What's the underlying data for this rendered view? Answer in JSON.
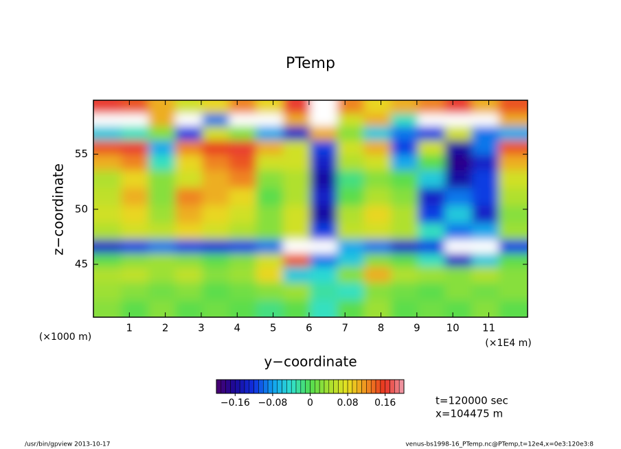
{
  "chart_data": {
    "type": "heatmap",
    "title": "PTemp",
    "xlabel": "y−coordinate",
    "ylabel": "z−coordinate",
    "xunit_left": "(×1000 m)",
    "xunit_right": "(×1E4 m)",
    "xlim": [
      0,
      12.08
    ],
    "xticks": [
      1,
      2,
      3,
      4,
      5,
      6,
      7,
      8,
      9,
      10,
      11
    ],
    "ylim": [
      40.2,
      59.9
    ],
    "yticks": [
      45,
      50,
      55
    ],
    "x": [
      0.4,
      1.15,
      1.9,
      2.65,
      3.4,
      4.15,
      4.9,
      5.65,
      6.4,
      7.15,
      7.9,
      8.65,
      9.4,
      10.15,
      10.9,
      11.65
    ],
    "y": [
      41,
      42.6,
      44.2,
      45.5,
      46.6,
      48,
      49.6,
      51.2,
      52.8,
      54.4,
      55.6,
      57,
      58.2,
      59.3
    ],
    "z": [
      [
        0.02,
        0.0,
        0.02,
        0.0,
        0.01,
        0.0,
        -0.02,
        0.0,
        -0.04,
        0.0,
        0.03,
        0.0,
        0.01,
        0.0,
        0.02,
        0.0
      ],
      [
        0.03,
        0.02,
        0.01,
        0.02,
        0.0,
        0.01,
        0.02,
        0.03,
        -0.03,
        -0.04,
        0.02,
        0.01,
        0.0,
        0.02,
        0.01,
        0.02
      ],
      [
        0.04,
        0.05,
        0.03,
        0.05,
        0.02,
        0.03,
        0.08,
        -0.06,
        -0.05,
        0.02,
        0.1,
        0.04,
        0.03,
        0.02,
        0.04,
        0.02
      ],
      [
        0.0,
        0.02,
        0.03,
        0.02,
        0.0,
        0.02,
        0.06,
        0.14,
        -0.1,
        -0.06,
        0.02,
        0.0,
        -0.04,
        -0.14,
        -0.06,
        0.0
      ],
      [
        -0.14,
        -0.12,
        -0.1,
        -0.12,
        -0.13,
        -0.12,
        -0.1,
        0.25,
        0.25,
        -0.08,
        -0.1,
        -0.14,
        -0.12,
        0.25,
        0.25,
        -0.12
      ],
      [
        0.04,
        0.06,
        0.05,
        0.08,
        0.06,
        0.04,
        0.02,
        0.06,
        -0.12,
        0.05,
        0.06,
        0.04,
        -0.04,
        -0.1,
        -0.08,
        0.03
      ],
      [
        0.06,
        0.08,
        0.03,
        0.1,
        0.08,
        0.06,
        0.02,
        0.06,
        -0.16,
        0.04,
        0.08,
        0.04,
        -0.12,
        -0.06,
        -0.14,
        0.02
      ],
      [
        0.05,
        0.1,
        0.02,
        0.12,
        0.1,
        0.08,
        0.0,
        0.04,
        -0.14,
        0.0,
        0.04,
        0.02,
        -0.14,
        -0.1,
        -0.12,
        0.04
      ],
      [
        0.04,
        0.08,
        0.02,
        0.06,
        0.1,
        0.12,
        0.02,
        0.04,
        -0.16,
        -0.02,
        0.02,
        0.0,
        -0.06,
        -0.16,
        -0.12,
        0.06
      ],
      [
        0.1,
        0.12,
        -0.04,
        0.08,
        0.12,
        0.14,
        0.06,
        0.06,
        -0.14,
        0.04,
        0.06,
        -0.08,
        0.0,
        -0.18,
        -0.14,
        0.1
      ],
      [
        0.14,
        0.16,
        -0.08,
        0.12,
        0.15,
        0.16,
        0.1,
        0.06,
        -0.12,
        0.06,
        0.1,
        -0.12,
        0.06,
        -0.16,
        -0.1,
        0.14
      ],
      [
        -0.06,
        -0.04,
        0.02,
        -0.12,
        0.06,
        0.02,
        -0.08,
        -0.14,
        0.1,
        0.02,
        -0.06,
        -0.1,
        -0.12,
        0.06,
        -0.1,
        -0.08
      ],
      [
        0.25,
        0.25,
        0.1,
        0.25,
        -0.1,
        0.25,
        0.25,
        0.1,
        0.25,
        0.06,
        0.1,
        -0.04,
        0.25,
        0.25,
        0.25,
        0.1
      ],
      [
        0.16,
        0.14,
        0.1,
        0.06,
        0.08,
        0.12,
        0.08,
        0.16,
        0.25,
        0.12,
        0.08,
        0.1,
        0.12,
        0.16,
        0.1,
        0.14
      ]
    ],
    "clim": [
      -0.2,
      0.2
    ],
    "level_step": 0.01,
    "colormap": [
      "#4b006e",
      "#1a0a9a",
      "#1030e0",
      "#10a0f0",
      "#30e0d0",
      "#50dc50",
      "#a8e030",
      "#e8e020",
      "#f09020",
      "#e83020",
      "#f0a0b0"
    ],
    "over_color": "#ffffff",
    "cticks": [
      {
        "value": -0.16,
        "label": "−0.16"
      },
      {
        "value": -0.08,
        "label": "−0.08"
      },
      0,
      0.08,
      0.16
    ],
    "notes": [
      "t=120000 sec",
      "x=104475 m"
    ],
    "footer_left": "/usr/bin/gpview  2013-10-17",
    "footer_right": "venus-bs1998-16_PTemp.nc@PTemp,t=12e4,x=0e3:120e3:8"
  }
}
